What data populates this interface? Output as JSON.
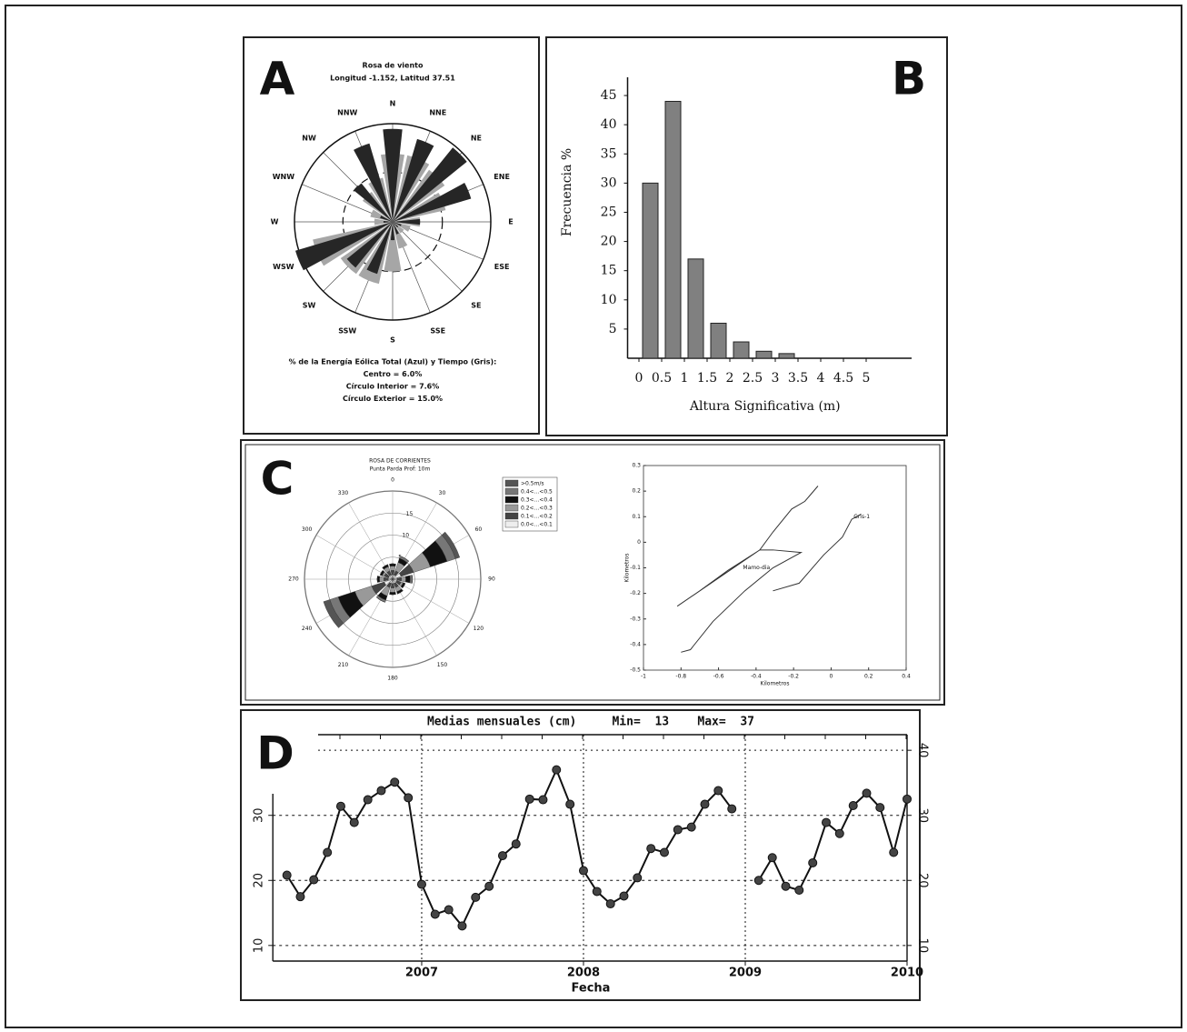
{
  "chart_data": [
    {
      "type": "windrose",
      "panel": "A",
      "title": "Rosa de viento",
      "subtitle": "Longitud -1.152, Latitud 37.51",
      "directions": [
        "N",
        "NNE",
        "NE",
        "ENE",
        "E",
        "ESE",
        "SE",
        "SSE",
        "S",
        "SSW",
        "SW",
        "WSW",
        "W",
        "WNW",
        "NW",
        "NNW"
      ],
      "series": [
        {
          "color": "#a6a6a6",
          "values": [
            10.4,
            10.4,
            9.7,
            8.3,
            4.2,
            2.8,
            2.1,
            4.2,
            7.6,
            9.7,
            9.7,
            12.5,
            2.8,
            3.5,
            5.6,
            6.9
          ]
        },
        {
          "color": "#262626",
          "values": [
            14.2,
            13.2,
            14.6,
            12.5,
            4.2,
            1.4,
            1.1,
            2,
            2.8,
            8.3,
            9,
            15.5,
            1.4,
            2,
            7.6,
            12.5
          ]
        }
      ],
      "rlim": [
        0,
        15
      ],
      "rings": [
        7.6,
        15
      ],
      "notes": [
        "% de la Energía Eólica Total (Azul) y Tiempo (Gris):",
        "Centro = 6.0%",
        "Círculo Interior = 7.6%",
        "Círculo Exterior = 15.0%"
      ]
    },
    {
      "type": "histogram",
      "panel": "B",
      "xlabel": "Altura Significativa (m)",
      "ylabel": "Frecuencia %",
      "bins": [
        0,
        0.5,
        1,
        1.5,
        2,
        2.5,
        3,
        3.5,
        4,
        4.5,
        5
      ],
      "values": [
        30,
        44,
        17,
        6,
        2.8,
        1.2,
        0.8,
        0,
        0,
        0
      ],
      "color": "#808080",
      "xlim": [
        -0.25,
        6
      ],
      "ylim": [
        0,
        47.5
      ],
      "xticks": [
        0,
        0.5,
        1,
        1.5,
        2,
        2.5,
        3,
        3.5,
        4,
        4.5,
        5
      ],
      "yticks": [
        5,
        10,
        15,
        20,
        25,
        30,
        35,
        40,
        45
      ]
    },
    {
      "type": "rose",
      "panel": "C",
      "title": "ROSA DE CORRIENTES",
      "subtitle": "Punta Parda   Prof: 10m",
      "directions": [
        0,
        30,
        60,
        90,
        120,
        150,
        180,
        210,
        240,
        270,
        300,
        330
      ],
      "rlim": [
        0,
        20
      ],
      "rings": [
        5,
        10,
        15,
        20
      ],
      "rticks": [
        5,
        10,
        15
      ],
      "series": [
        {
          "name": ">0.5m/s",
          "color": "#555555",
          "values": [
            0,
            0,
            1,
            0,
            0,
            0,
            0,
            0,
            1.5,
            0,
            0,
            0
          ]
        },
        {
          "name": "0.4<...<0.5",
          "color": "#777777",
          "values": [
            0,
            0.5,
            2,
            0.5,
            0,
            0,
            0,
            0.5,
            2,
            0,
            0,
            0
          ]
        },
        {
          "name": "0.3<...<0.4",
          "color": "#111111",
          "values": [
            0.5,
            1,
            4,
            1,
            0.5,
            0.5,
            0.5,
            1,
            4,
            0.5,
            0.5,
            0.5
          ]
        },
        {
          "name": "0.2<...<0.3",
          "color": "#999999",
          "values": [
            1,
            2,
            4,
            1,
            0.5,
            1,
            1,
            2,
            4,
            1,
            0.5,
            1
          ]
        },
        {
          "name": "0.1<...<0.2",
          "color": "#444444",
          "values": [
            1,
            1,
            3,
            1,
            1,
            1,
            1,
            1,
            3,
            1,
            1,
            1
          ]
        },
        {
          "name": "0.0<...<0.1",
          "color": "#eeeeee",
          "values": [
            1,
            1,
            2,
            1,
            1,
            1,
            1,
            1,
            2,
            1,
            1,
            1
          ]
        }
      ]
    },
    {
      "type": "trajectory",
      "xlabel": "Kilometros",
      "ylabel": "Kilometros",
      "xlim": [
        -1,
        0.4
      ],
      "ylim": [
        -0.5,
        0.3
      ],
      "xticks": [
        -1,
        -0.8,
        -0.6,
        -0.4,
        -0.2,
        0,
        0.2,
        0.4
      ],
      "yticks": [
        -0.5,
        -0.4,
        -0.3,
        -0.2,
        -0.1,
        0,
        0.1,
        0.2,
        0.3
      ],
      "series": [
        {
          "color": "#333333",
          "x": [
            -0.8,
            -0.75,
            -0.63,
            -0.46,
            -0.31,
            -0.16,
            -0.31,
            -0.38,
            -0.55,
            -0.7,
            -0.82,
            -0.38,
            -0.31,
            -0.21,
            -0.14,
            -0.07
          ],
          "y": [
            -0.43,
            -0.42,
            -0.31,
            -0.19,
            -0.1,
            -0.04,
            -0.03,
            -0.03,
            -0.11,
            -0.19,
            -0.25,
            -0.03,
            0.04,
            0.13,
            0.16,
            0.22
          ]
        },
        {
          "color": "#333333",
          "x": [
            -0.31,
            -0.17,
            -0.04,
            0.06,
            0.11,
            0.16
          ],
          "y": [
            -0.19,
            -0.16,
            -0.05,
            0.02,
            0.09,
            0.11
          ]
        }
      ],
      "annotations": [
        {
          "text": "Gris-1",
          "x": 0.12,
          "y": 0.1
        },
        {
          "text": "Mamo-dia",
          "x": -0.47,
          "y": -0.1
        }
      ]
    },
    {
      "type": "line",
      "panel": "D",
      "title": "Medias mensuales (cm)     Min=  13    Max=  37",
      "xlabel": "Fecha",
      "x": [
        2006.167,
        2006.25,
        2006.333,
        2006.417,
        2006.5,
        2006.583,
        2006.667,
        2006.75,
        2006.833,
        2006.917,
        2007,
        2007.083,
        2007.167,
        2007.25,
        2007.333,
        2007.417,
        2007.5,
        2007.583,
        2007.667,
        2007.75,
        2007.833,
        2007.917,
        2008,
        2008.083,
        2008.167,
        2008.25,
        2008.333,
        2008.417,
        2008.5,
        2008.583,
        2008.667,
        2008.75,
        2008.833,
        2008.917,
        2009,
        2009.083,
        2009.167,
        2009.25,
        2009.333,
        2009.417,
        2009.5,
        2009.583,
        2009.667,
        2009.75,
        2009.833,
        2009.917,
        2010
      ],
      "series": [
        {
          "color": "#111111",
          "values": [
            20.8,
            17.5,
            20.1,
            24.3,
            31.4,
            28.9,
            32.4,
            33.8,
            35.1,
            32.7,
            19.4,
            14.8,
            15.5,
            13,
            17.4,
            19.1,
            23.8,
            25.6,
            32.5,
            32.4,
            37,
            31.7,
            21.5,
            18.3,
            16.4,
            17.6,
            20.4,
            24.9,
            24.3,
            27.8,
            28.2,
            31.7,
            33.8,
            31,
            null,
            20,
            23.5,
            19.1,
            18.5,
            22.7,
            28.9,
            27.2,
            31.5,
            33.4,
            31.2,
            24.3,
            32.5
          ]
        }
      ],
      "xlim": [
        2006.08,
        2010
      ],
      "ylim": [
        7.6,
        42.4
      ],
      "y2lim": [
        7.6,
        42.4
      ],
      "xticks": [
        2007,
        2008,
        2009,
        2010
      ],
      "yticks": [
        10,
        20,
        30
      ],
      "y2ticks": [
        10,
        20,
        30,
        40
      ],
      "grid": true
    }
  ]
}
